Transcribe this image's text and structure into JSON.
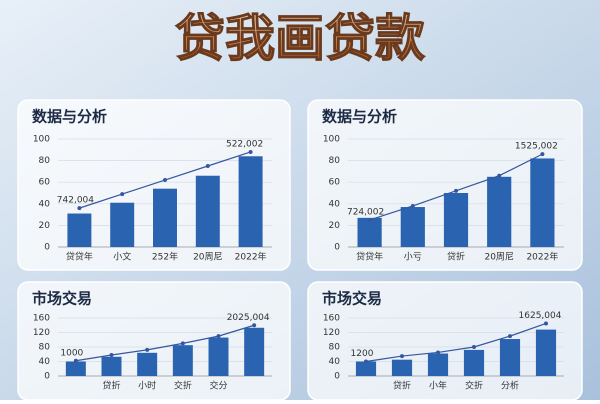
{
  "header": {
    "title": "贷我画贷款"
  },
  "chart_data": [
    {
      "type": "bar",
      "title": "数据与分析",
      "categories": [
        "贷贷年",
        "小文",
        "252年",
        "20周尼",
        "2022年"
      ],
      "series": [
        {
          "type": "bar",
          "color": "#2a63b0",
          "values": [
            31,
            41,
            54,
            66,
            84
          ]
        },
        {
          "type": "line",
          "color": "#3557a0",
          "values": [
            36,
            49,
            62,
            75,
            88
          ]
        }
      ],
      "annotations": [
        "742,004",
        "522,002"
      ],
      "ylim": [
        0,
        100
      ],
      "yticks": [
        0,
        20,
        40,
        60,
        80,
        100
      ],
      "grid": true
    },
    {
      "type": "bar",
      "title": "数据与分析",
      "categories": [
        "贷贷年",
        "小亏",
        "贷折",
        "20周尼",
        "2022年"
      ],
      "series": [
        {
          "type": "bar",
          "color": "#2a63b0",
          "values": [
            27,
            37,
            50,
            65,
            82
          ]
        },
        {
          "type": "line",
          "color": "#3557a0",
          "values": [
            25,
            38,
            52,
            66,
            86
          ]
        }
      ],
      "annotations": [
        "724,002",
        "1525,002"
      ],
      "ylim": [
        0,
        100
      ],
      "yticks": [
        0,
        20,
        40,
        60,
        80,
        100
      ],
      "grid": true
    },
    {
      "type": "bar",
      "title": "市场交易",
      "categories": [
        null,
        "贷折",
        "小时",
        "交折",
        "交分",
        null
      ],
      "series": [
        {
          "type": "bar",
          "color": "#2a63b0",
          "values": [
            40,
            53,
            64,
            85,
            106,
            133
          ]
        },
        {
          "type": "line",
          "color": "#3557a0",
          "values": [
            42,
            58,
            72,
            90,
            110,
            140
          ]
        }
      ],
      "annotations": [
        "1000",
        "2025,004"
      ],
      "ylim": [
        0,
        160
      ],
      "yticks": [
        0,
        40,
        80,
        120,
        160
      ],
      "grid": true
    },
    {
      "type": "bar",
      "title": "市场交易",
      "categories": [
        null,
        "贷折",
        "小年",
        "交折",
        "分析",
        null
      ],
      "series": [
        {
          "type": "bar",
          "color": "#2a63b0",
          "values": [
            40,
            45,
            62,
            72,
            102,
            128
          ]
        },
        {
          "type": "line",
          "color": "#3557a0",
          "values": [
            40,
            55,
            65,
            80,
            110,
            145
          ]
        }
      ],
      "annotations": [
        "1200",
        "1625,004"
      ],
      "ylim": [
        0,
        160
      ],
      "yticks": [
        0,
        40,
        80,
        120,
        160
      ],
      "grid": true
    }
  ]
}
